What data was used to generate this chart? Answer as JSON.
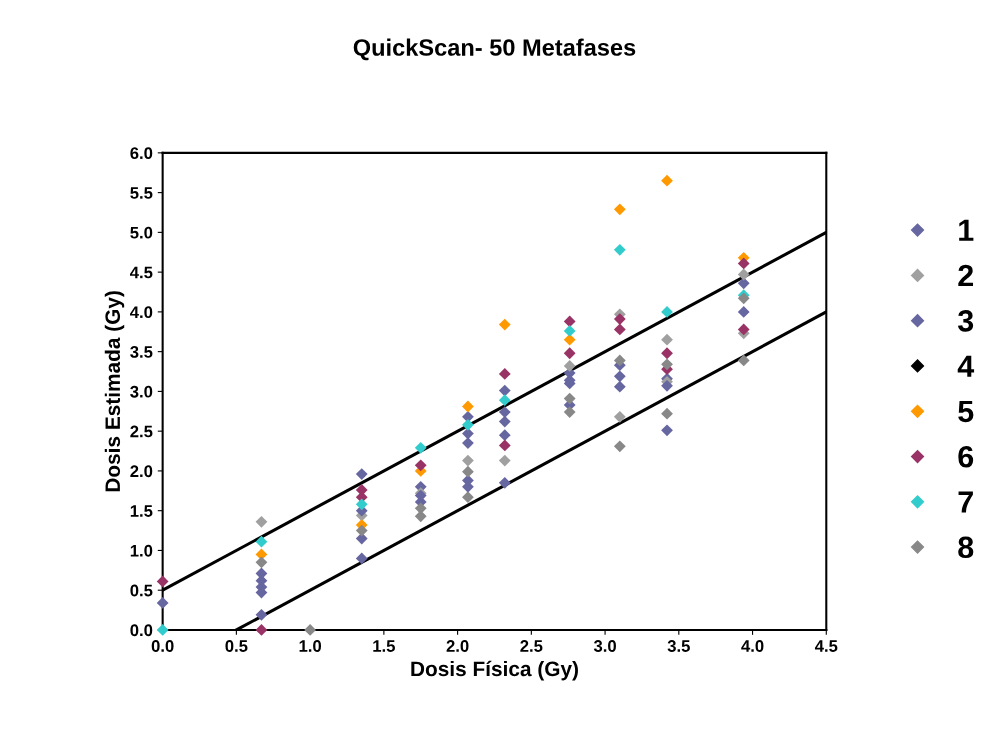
{
  "chart_data": {
    "type": "scatter",
    "title": "QuickScan- 50 Metafases",
    "xlabel": "Dosis Física (Gy)",
    "ylabel": "Dosis Estimada (Gy)",
    "xlim": [
      0,
      4.5
    ],
    "ylim": [
      0,
      6
    ],
    "xticks": [
      {
        "value": 0,
        "label": "0.0"
      },
      {
        "value": 0.5,
        "label": "0.5"
      },
      {
        "value": 1,
        "label": "1.0"
      },
      {
        "value": 1.5,
        "label": "1.5"
      },
      {
        "value": 2,
        "label": "2.0"
      },
      {
        "value": 2.5,
        "label": "2.5"
      },
      {
        "value": 3,
        "label": "3.0"
      },
      {
        "value": 3.5,
        "label": "3.5"
      },
      {
        "value": 4,
        "label": "4.0"
      },
      {
        "value": 4.5,
        "label": "4.5"
      }
    ],
    "yticks": [
      {
        "value": 0,
        "label": "0.0"
      },
      {
        "value": 0.5,
        "label": "0.5"
      },
      {
        "value": 1,
        "label": "1.0"
      },
      {
        "value": 1.5,
        "label": "1.5"
      },
      {
        "value": 2,
        "label": "2.0"
      },
      {
        "value": 2.5,
        "label": "2.5"
      },
      {
        "value": 3,
        "label": "3.0"
      },
      {
        "value": 3.5,
        "label": "3.5"
      },
      {
        "value": 4,
        "label": "4.0"
      },
      {
        "value": 4.5,
        "label": "4.5"
      },
      {
        "value": 5,
        "label": "5.0"
      },
      {
        "value": 5.5,
        "label": "5.5"
      },
      {
        "value": 6,
        "label": "6.0"
      }
    ],
    "grid": false,
    "legend": "right",
    "marker": "diamond",
    "series": [
      {
        "name": "1",
        "color": "#6666a0",
        "x": [
          0,
          0.67,
          0.67,
          0.67,
          1.35,
          1.35,
          1.75,
          1.75,
          2.07,
          2.07,
          2.07,
          2.32,
          2.32,
          2.32,
          2.76,
          2.76,
          2.76,
          3.1,
          3.1,
          3.42,
          3.42,
          3.94
        ],
        "values": [
          0.34,
          0.71,
          0.54,
          0.19,
          1.96,
          1.15,
          1.8,
          1.61,
          2.68,
          2.35,
          1.8,
          3.01,
          2.62,
          1.85,
          3.23,
          3.1,
          2.83,
          3.33,
          3.06,
          3.16,
          2.51,
          4.36
        ]
      },
      {
        "name": "2",
        "color": "#a0a0a0",
        "x": [
          0.67,
          1.35,
          1.75,
          2.07,
          2.32,
          2.76,
          3.1,
          3.1,
          3.42,
          3.42,
          3.94,
          3.94
        ],
        "values": [
          1.36,
          1.44,
          1.72,
          2.13,
          2.13,
          3.32,
          3.97,
          2.68,
          3.65,
          3.12,
          4.47,
          3.73
        ]
      },
      {
        "name": "3",
        "color": "#6666a0",
        "x": [
          0.67,
          0.67,
          1.35,
          1.35,
          1.75,
          2.07,
          2.07,
          2.32,
          2.32,
          2.76,
          3.1,
          3.42,
          3.94
        ],
        "values": [
          0.62,
          0.47,
          1.5,
          0.9,
          1.69,
          2.47,
          1.88,
          2.74,
          2.45,
          3.14,
          3.19,
          3.07,
          4.0
        ]
      },
      {
        "name": "4",
        "color": "#000000"
      },
      {
        "name": "5",
        "color": "#ff9900",
        "x": [
          0.67,
          1.35,
          1.75,
          2.07,
          2.32,
          2.76,
          3.1,
          3.42,
          3.94
        ],
        "values": [
          0.95,
          1.32,
          2.0,
          2.81,
          3.84,
          3.65,
          5.29,
          5.65,
          4.68
        ]
      },
      {
        "name": "6",
        "color": "#993366",
        "x": [
          0,
          0.67,
          1.35,
          1.35,
          1.75,
          2.32,
          2.32,
          2.76,
          2.76,
          3.1,
          3.1,
          3.42,
          3.42,
          3.94,
          3.94
        ],
        "values": [
          0.61,
          0,
          1.76,
          1.67,
          2.07,
          3.22,
          2.32,
          3.88,
          3.48,
          3.91,
          3.78,
          3.48,
          3.28,
          4.61,
          3.78
        ]
      },
      {
        "name": "7",
        "color": "#33cccc",
        "x": [
          0,
          0.67,
          1.35,
          1.75,
          2.07,
          2.32,
          2.76,
          3.1,
          3.42,
          3.94
        ],
        "values": [
          0,
          1.11,
          1.58,
          2.29,
          2.58,
          2.89,
          3.76,
          4.78,
          4.0,
          4.21
        ]
      },
      {
        "name": "8",
        "color": "#888888",
        "x": [
          0.67,
          1.0,
          1.35,
          1.75,
          1.75,
          2.07,
          2.07,
          2.76,
          2.76,
          3.1,
          3.1,
          3.42,
          3.42,
          3.94,
          3.94
        ],
        "values": [
          0.85,
          0,
          1.25,
          1.53,
          1.43,
          1.99,
          1.67,
          2.91,
          2.74,
          3.39,
          2.31,
          3.34,
          2.72,
          4.17,
          3.39
        ]
      },
      {
        "type": "line",
        "color": "#000000",
        "marker": "none",
        "x": [
          0,
          4.5
        ],
        "values": [
          0.5,
          5.0
        ]
      },
      {
        "type": "line",
        "color": "#000000",
        "marker": "none",
        "x": [
          0.5,
          4.5
        ],
        "values": [
          0,
          4.0
        ]
      }
    ]
  }
}
